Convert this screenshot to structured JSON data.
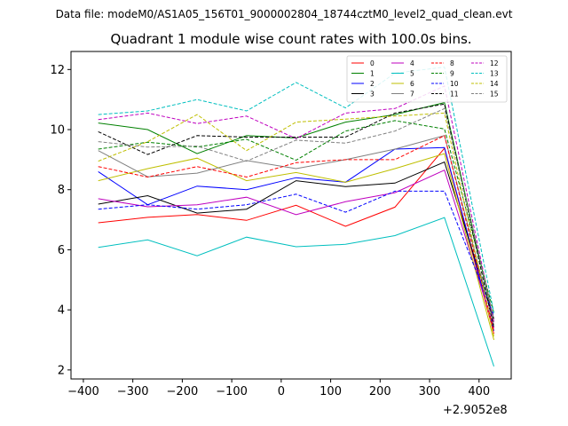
{
  "figure": {
    "suptitle": "Data file: modeM0/AS1A05_156T01_9000002804_18744cztM0_level2_quad_clean.evt"
  },
  "chart_data": {
    "type": "line",
    "title": "Quadrant 1 module wise count rates with 100.0s bins.",
    "x_offset_label": "+2.9052e8",
    "xlim": [
      -425,
      465
    ],
    "ylim": [
      1.7,
      12.6
    ],
    "x_ticks": [
      -400,
      -300,
      -200,
      -100,
      0,
      100,
      200,
      300,
      400
    ],
    "x_tick_labels": [
      "−400",
      "−300",
      "−200",
      "−100",
      "0",
      "100",
      "200",
      "300",
      "400"
    ],
    "y_ticks": [
      2,
      4,
      6,
      8,
      10,
      12
    ],
    "y_tick_labels": [
      "2",
      "4",
      "6",
      "8",
      "10",
      "12"
    ],
    "x": [
      -370,
      -270,
      -170,
      -70,
      30,
      130,
      230,
      330,
      430
    ],
    "legend_location": "upper right",
    "legend_columns": 4,
    "series": [
      {
        "name": "0",
        "color": "#ff0000",
        "dashed": false,
        "values": [
          6.9,
          7.08,
          7.17,
          6.98,
          7.48,
          6.78,
          7.42,
          9.38,
          3.2
        ]
      },
      {
        "name": "1",
        "color": "#008000",
        "dashed": false,
        "values": [
          10.22,
          10.0,
          9.2,
          9.8,
          9.72,
          10.25,
          10.5,
          10.9,
          3.6
        ]
      },
      {
        "name": "2",
        "color": "#0000ff",
        "dashed": false,
        "values": [
          8.6,
          7.5,
          8.12,
          8.0,
          8.4,
          8.25,
          9.35,
          9.4,
          3.3
        ]
      },
      {
        "name": "3",
        "color": "#000000",
        "dashed": false,
        "values": [
          7.52,
          7.8,
          7.22,
          7.35,
          8.3,
          8.1,
          8.22,
          8.92,
          3.7
        ]
      },
      {
        "name": "4",
        "color": "#bf00bf",
        "dashed": false,
        "values": [
          7.7,
          7.43,
          7.5,
          7.75,
          7.17,
          7.6,
          7.9,
          8.65,
          3.4
        ]
      },
      {
        "name": "5",
        "color": "#00bfbf",
        "dashed": false,
        "values": [
          6.08,
          6.33,
          5.8,
          6.42,
          6.1,
          6.18,
          6.47,
          7.07,
          2.12
        ]
      },
      {
        "name": "6",
        "color": "#bfbf00",
        "dashed": false,
        "values": [
          8.3,
          8.7,
          9.05,
          8.3,
          8.57,
          8.25,
          8.7,
          9.2,
          3.0
        ]
      },
      {
        "name": "7",
        "color": "#808080",
        "dashed": false,
        "values": [
          9.3,
          8.43,
          8.55,
          8.97,
          8.7,
          9.0,
          9.35,
          9.8,
          3.5
        ]
      },
      {
        "name": "8",
        "color": "#ff0000",
        "dashed": true,
        "values": [
          8.77,
          8.42,
          8.77,
          8.42,
          8.9,
          9.0,
          9.0,
          9.8,
          3.3
        ]
      },
      {
        "name": "9",
        "color": "#008000",
        "dashed": true,
        "values": [
          9.35,
          9.58,
          9.42,
          9.68,
          8.98,
          9.95,
          10.3,
          10.02,
          3.9
        ]
      },
      {
        "name": "10",
        "color": "#0000ff",
        "dashed": true,
        "values": [
          7.35,
          7.5,
          7.35,
          7.5,
          7.85,
          7.25,
          7.95,
          7.95,
          3.8
        ]
      },
      {
        "name": "11",
        "color": "#000000",
        "dashed": true,
        "values": [
          9.93,
          9.17,
          9.8,
          9.75,
          9.75,
          9.75,
          10.55,
          10.85,
          3.4
        ]
      },
      {
        "name": "12",
        "color": "#bf00bf",
        "dashed": true,
        "values": [
          10.33,
          10.55,
          10.2,
          10.45,
          9.7,
          10.55,
          10.7,
          11.45,
          3.6
        ]
      },
      {
        "name": "13",
        "color": "#00bfbf",
        "dashed": true,
        "values": [
          10.5,
          10.62,
          11.0,
          10.62,
          11.57,
          10.72,
          11.88,
          12.08,
          3.9
        ]
      },
      {
        "name": "14",
        "color": "#bfbf00",
        "dashed": true,
        "values": [
          8.95,
          9.6,
          10.5,
          9.3,
          10.25,
          10.35,
          10.45,
          10.55,
          3.1
        ]
      },
      {
        "name": "15",
        "color": "#808080",
        "dashed": true,
        "values": [
          9.6,
          9.42,
          9.45,
          8.95,
          9.65,
          9.55,
          9.95,
          10.7,
          3.7
        ]
      }
    ]
  }
}
